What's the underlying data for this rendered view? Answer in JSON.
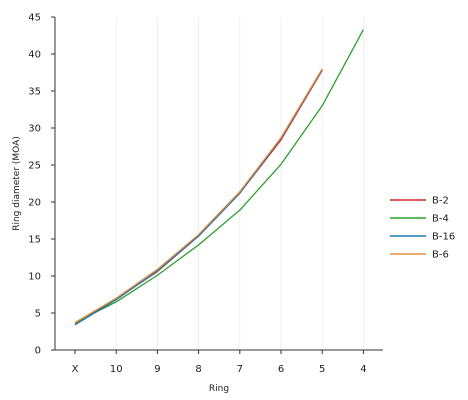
{
  "chart_data": {
    "type": "line",
    "title": "",
    "xlabel": "Ring",
    "ylabel": "Ring diameter (MOA)",
    "categories": [
      "X",
      "10",
      "9",
      "8",
      "7",
      "6",
      "5",
      "4"
    ],
    "ylim": [
      0,
      45
    ],
    "yticks": [
      0,
      5,
      10,
      15,
      20,
      25,
      30,
      35,
      40,
      45
    ],
    "grid": "vertical",
    "legend_position": "right",
    "series": [
      {
        "name": "B-2",
        "color": "#d62728",
        "values": [
          3.6,
          6.9,
          10.6,
          15.4,
          21.2,
          28.4,
          37.8,
          null
        ]
      },
      {
        "name": "B-4",
        "color": "#2ca02c",
        "values": [
          3.7,
          6.5,
          10.1,
          14.2,
          18.9,
          25.1,
          33.0,
          43.3
        ]
      },
      {
        "name": "B-16",
        "color": "#1f77b4",
        "values": [
          3.4,
          6.8,
          10.7,
          15.4,
          21.2,
          28.6,
          37.9,
          null
        ]
      },
      {
        "name": "B-6",
        "color": "#dd8f3f",
        "values": [
          3.7,
          7.0,
          10.9,
          15.6,
          21.4,
          28.7,
          38.0,
          null
        ]
      }
    ]
  }
}
